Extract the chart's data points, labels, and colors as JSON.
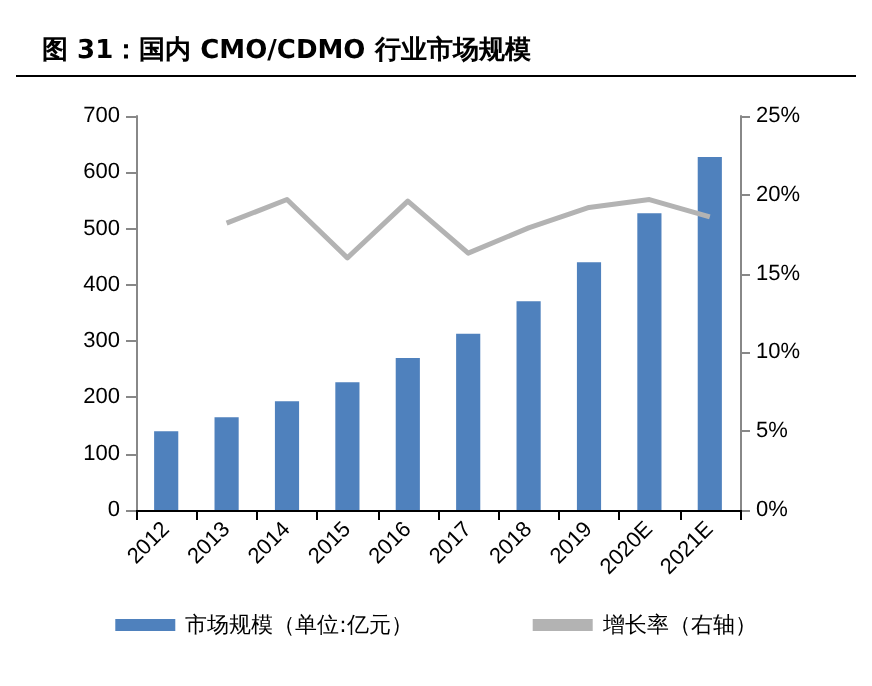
{
  "chart_data": {
    "type": "bar",
    "title": "图 31：国内 CMO/CDMO 行业市场规模",
    "categories": [
      "2012",
      "2013",
      "2014",
      "2015",
      "2016",
      "2017",
      "2018",
      "2019",
      "2020E",
      "2021E"
    ],
    "series": [
      {
        "name": "市场规模（单位:亿元）",
        "color": "#4f81bd",
        "values": [
          140,
          165,
          193,
          227,
          270,
          313,
          371,
          440,
          527,
          627
        ]
      },
      {
        "name": "增长率（右轴）",
        "type": "line",
        "axis": "y2",
        "color": "#b3b3b3",
        "values": [
          null,
          18.2,
          19.7,
          16.0,
          19.6,
          16.3,
          17.9,
          19.2,
          19.7,
          18.6
        ]
      }
    ],
    "ylim": [
      0,
      700
    ],
    "yticks": [
      0,
      100,
      200,
      300,
      400,
      500,
      600,
      700
    ],
    "y2lim": [
      0,
      25
    ],
    "y2ticks": [
      {
        "value": 0,
        "label": "0%"
      },
      {
        "value": 5,
        "label": "5%"
      },
      {
        "value": 10,
        "label": "10%"
      },
      {
        "value": 15,
        "label": "15%"
      },
      {
        "value": 20,
        "label": "20%"
      },
      {
        "value": 25,
        "label": "25%"
      }
    ],
    "grid": false,
    "legend": "bottom",
    "marker": "none"
  }
}
